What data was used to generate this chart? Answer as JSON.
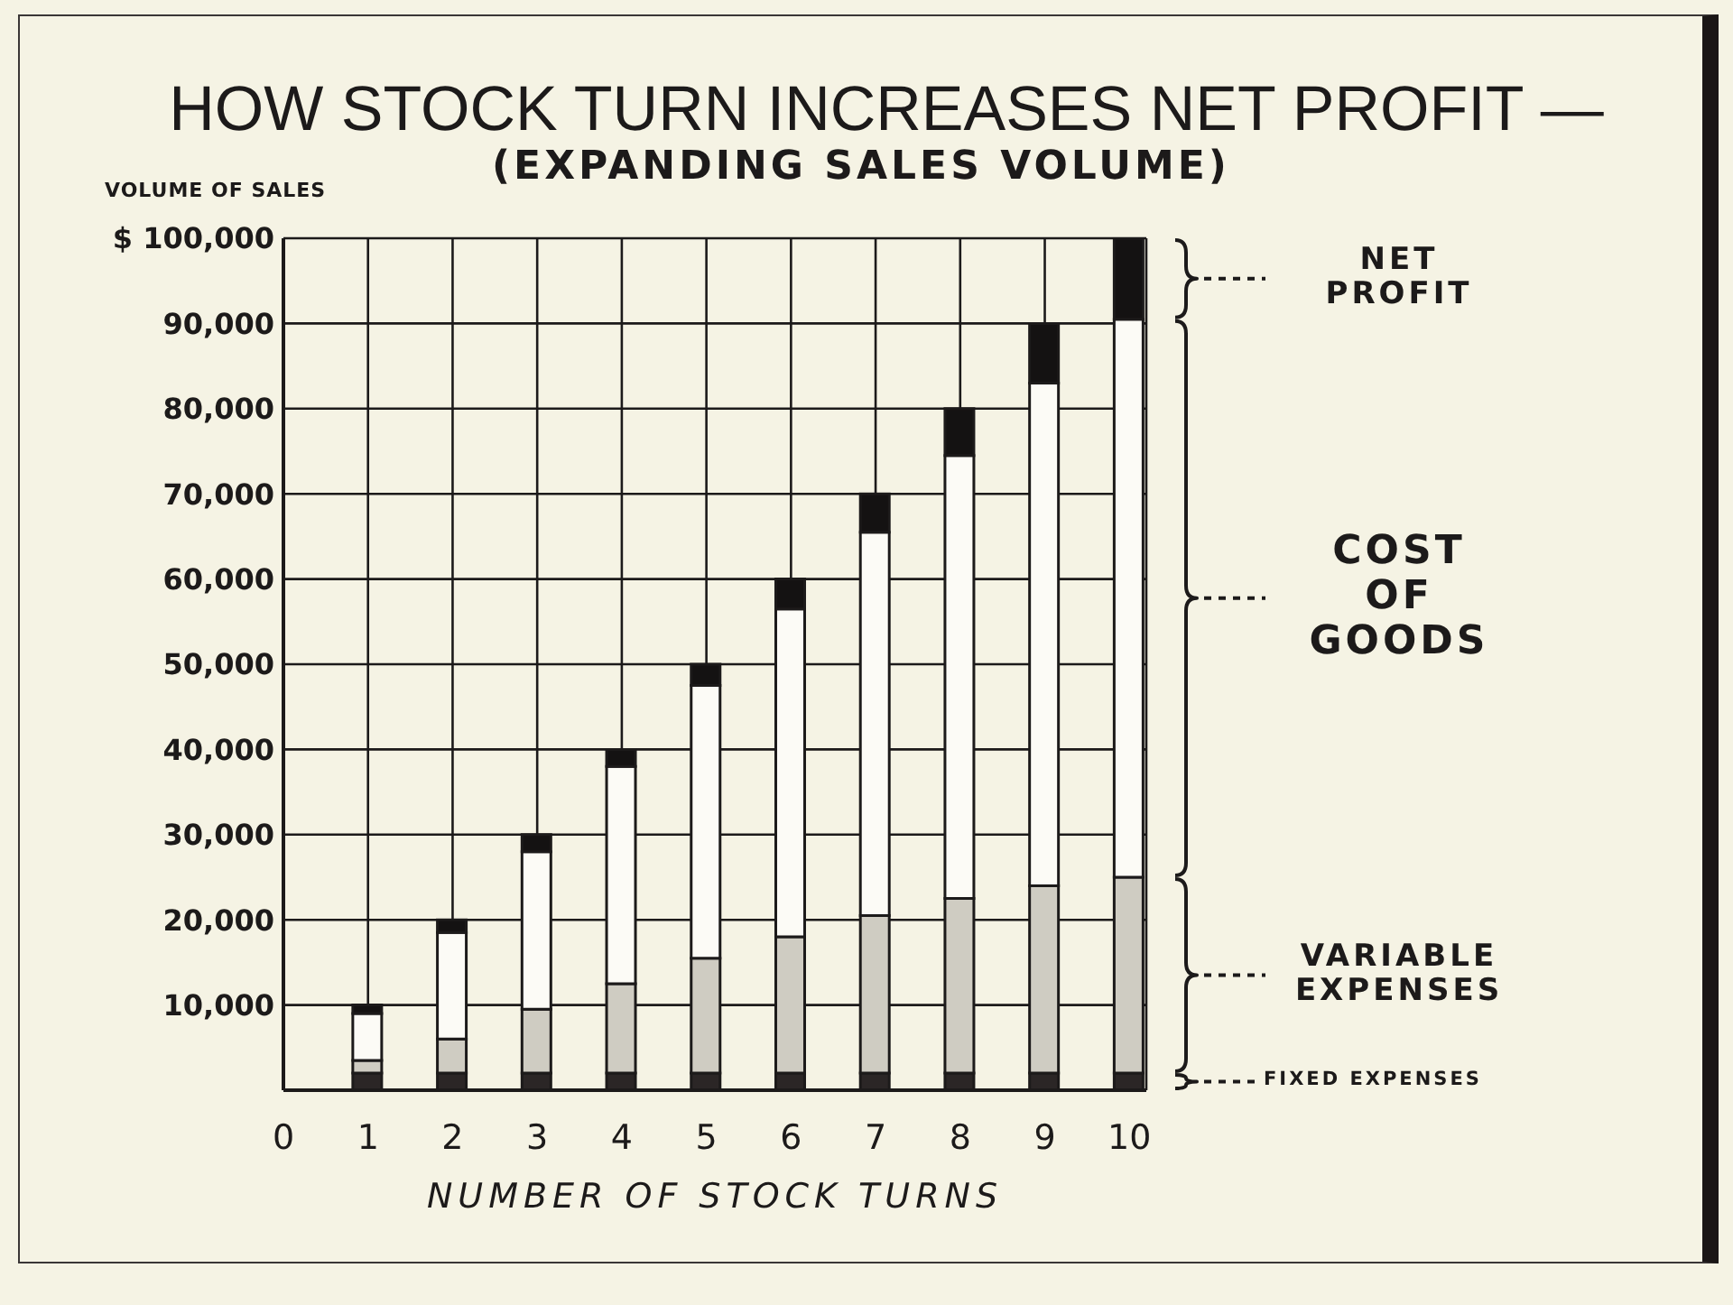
{
  "chart_data": {
    "type": "bar",
    "title": "HOW STOCK TURN INCREASES NET PROFIT —",
    "subtitle": "(EXPANDING SALES VOLUME)",
    "xlabel": "NUMBER OF STOCK TURNS",
    "ylabel": "VOLUME OF SALES",
    "x": [
      1,
      2,
      3,
      4,
      5,
      6,
      7,
      8,
      9,
      10
    ],
    "series": [
      {
        "name": "FIXED EXPENSES",
        "color": "#2b2626",
        "values": [
          2000,
          2000,
          2000,
          2000,
          2000,
          2000,
          2000,
          2000,
          2000,
          2000
        ]
      },
      {
        "name": "VARIABLE EXPENSES",
        "color": "#cfccc2",
        "values": [
          1500,
          4000,
          7500,
          10500,
          13500,
          16000,
          18500,
          20500,
          22000,
          23000
        ]
      },
      {
        "name": "COST OF GOODS",
        "color": "#fcfbf6",
        "values": [
          5500,
          12500,
          18500,
          25500,
          32000,
          38500,
          45000,
          52000,
          59000,
          65500
        ]
      },
      {
        "name": "NET PROFIT",
        "color": "#141212",
        "values": [
          1000,
          1500,
          2000,
          2000,
          2500,
          3500,
          4500,
          5500,
          7000,
          9500
        ]
      }
    ],
    "stacked": true,
    "xlim": [
      0,
      10.2
    ],
    "xticks": [
      0,
      1,
      2,
      3,
      4,
      5,
      6,
      7,
      8,
      9,
      10
    ],
    "ylim": [
      0,
      100000
    ],
    "yticks": [
      {
        "value": 10000,
        "label": "10,000"
      },
      {
        "value": 20000,
        "label": "20,000"
      },
      {
        "value": 30000,
        "label": "30,000"
      },
      {
        "value": 40000,
        "label": "40,000"
      },
      {
        "value": 50000,
        "label": "50,000"
      },
      {
        "value": 60000,
        "label": "60,000"
      },
      {
        "value": 70000,
        "label": "70,000"
      },
      {
        "value": 80000,
        "label": "80,000"
      },
      {
        "value": 90000,
        "label": "90,000"
      },
      {
        "value": 100000,
        "label": "$ 100,000"
      }
    ],
    "grid": true,
    "legend": "right"
  }
}
